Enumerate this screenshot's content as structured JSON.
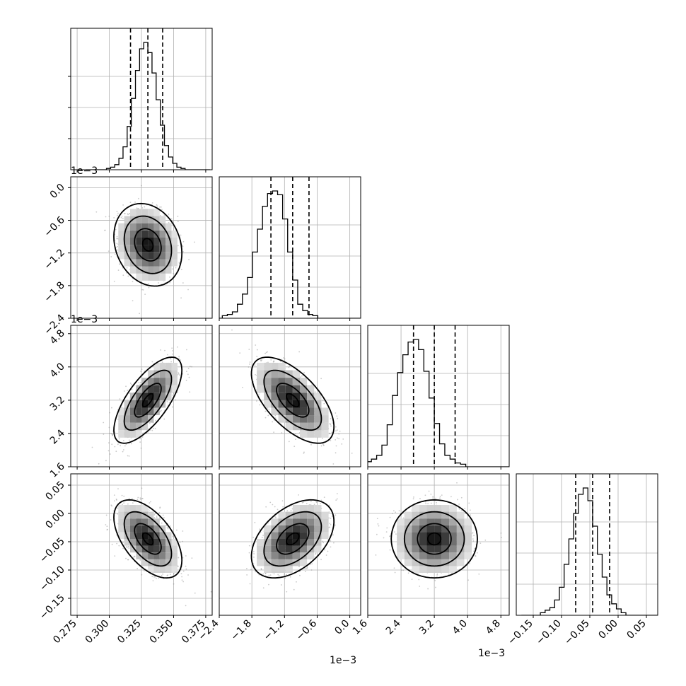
{
  "chart_data": {
    "type": "corner",
    "grid": true,
    "parameters": [
      {
        "range": [
          0.27,
          0.38
        ],
        "ticks": [
          0.275,
          0.3,
          0.325,
          0.35,
          0.375
        ],
        "tick_labels": [
          "0.275",
          "0.300",
          "0.325",
          "0.350",
          "0.375"
        ],
        "offset_label": "",
        "quantiles": [
          0.3165,
          0.33,
          0.3415
        ],
        "mean": 0.33,
        "sd": 0.0115
      },
      {
        "range": [
          -2.4,
          0.2
        ],
        "ticks": [
          -2.4,
          -1.8,
          -1.2,
          -0.6,
          0.0
        ],
        "tick_labels": [
          "−2.4",
          "−1.8",
          "−1.2",
          "−0.6",
          "0.0"
        ],
        "offset_label": "1e−3",
        "quantiles": [
          -1.45,
          -1.05,
          -0.75
        ],
        "mean": -1.05,
        "sd": 0.33
      },
      {
        "range": [
          1.6,
          5.0
        ],
        "ticks": [
          1.6,
          2.4,
          3.2,
          4.0,
          4.8
        ],
        "tick_labels": [
          "1.6",
          "2.4",
          "3.2",
          "4.0",
          "4.8"
        ],
        "offset_label": "1e−3",
        "quantiles": [
          2.7,
          3.2,
          3.7
        ],
        "mean": 3.2,
        "sd": 0.45
      },
      {
        "range": [
          -0.18,
          0.07
        ],
        "ticks": [
          -0.15,
          -0.1,
          -0.05,
          0.0,
          0.05
        ],
        "tick_labels": [
          "−0.15",
          "−0.10",
          "−0.05",
          "0.00",
          "0.05"
        ],
        "offset_label": "",
        "quantiles": [
          -0.075,
          -0.045,
          -0.015
        ],
        "mean": -0.045,
        "sd": 0.03
      }
    ],
    "histograms": [
      [
        0,
        0,
        0,
        0,
        0,
        1,
        2,
        4,
        9,
        18,
        34,
        56,
        78,
        95,
        100,
        92,
        76,
        55,
        35,
        19,
        10,
        5,
        2,
        1,
        0,
        0,
        0,
        0,
        0,
        0
      ],
      [
        0,
        2,
        3,
        5,
        11,
        19,
        32,
        52,
        70,
        88,
        98,
        100,
        97,
        78,
        52,
        30,
        11,
        6,
        3,
        2,
        0,
        0,
        0,
        0,
        0,
        0,
        0,
        0,
        0,
        0
      ],
      [
        0,
        2,
        4,
        6,
        9,
        17,
        33,
        56,
        74,
        88,
        98,
        100,
        92,
        75,
        54,
        34,
        18,
        9,
        6,
        3,
        2,
        0,
        0,
        0,
        0,
        0,
        0,
        0,
        0,
        0
      ],
      [
        0,
        0,
        0,
        0,
        2,
        4,
        6,
        12,
        22,
        40,
        60,
        80,
        95,
        100,
        90,
        70,
        48,
        30,
        16,
        9,
        5,
        2,
        0,
        0,
        0,
        0,
        0,
        0,
        0,
        0
      ]
    ],
    "correlations": [
      {
        "pair": [
          1,
          0
        ],
        "rho": -0.2
      },
      {
        "pair": [
          2,
          0
        ],
        "rho": 0.7
      },
      {
        "pair": [
          2,
          1
        ],
        "rho": -0.62
      },
      {
        "pair": [
          3,
          0
        ],
        "rho": -0.55
      },
      {
        "pair": [
          3,
          1
        ],
        "rho": 0.45
      },
      {
        "pair": [
          3,
          2
        ],
        "rho": 0.0
      }
    ]
  }
}
